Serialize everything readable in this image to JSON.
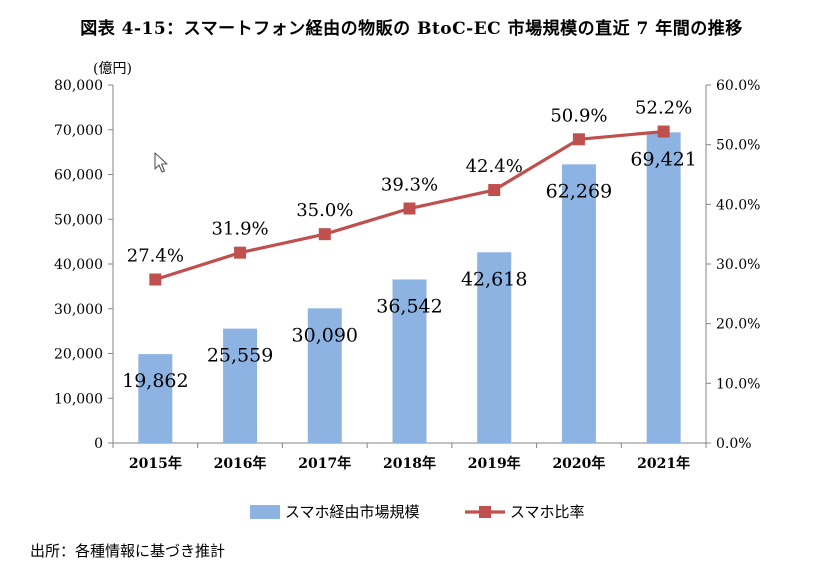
{
  "title": "図表 4-15：スマートフォン経由の物販の BtoC-EC 市場規模の直近 7 年間の推移",
  "source": "出所：各種情報に基づき推計",
  "chart_data": {
    "type": "bar",
    "title": "図表 4-15：スマートフォン経由の物販の BtoC-EC 市場規模の直近 7 年間の推移",
    "categories": [
      "2015年",
      "2016年",
      "2017年",
      "2018年",
      "2019年",
      "2020年",
      "2021年"
    ],
    "y_unit_label": "(億円)",
    "ylim": [
      0,
      80000
    ],
    "y_ticks": [
      "0",
      "10,000",
      "20,000",
      "30,000",
      "40,000",
      "50,000",
      "60,000",
      "70,000",
      "80,000"
    ],
    "y2lim": [
      0,
      60
    ],
    "y2_ticks": [
      "0.0%",
      "10.0%",
      "20.0%",
      "30.0%",
      "40.0%",
      "50.0%",
      "60.0%"
    ],
    "series": [
      {
        "name": "スマホ経由市場規模",
        "type": "bar",
        "axis": "left",
        "color": "#8db3e2",
        "values": [
          19862,
          25559,
          30090,
          36542,
          42618,
          62269,
          69421
        ],
        "labels": [
          "19,862",
          "25,559",
          "30,090",
          "36,542",
          "42,618",
          "62,269",
          "69,421"
        ]
      },
      {
        "name": "スマホ比率",
        "type": "line",
        "axis": "right",
        "color": "#c0504d",
        "values": [
          27.4,
          31.9,
          35.0,
          39.3,
          42.4,
          50.9,
          52.2
        ],
        "labels": [
          "27.4%",
          "31.9%",
          "35.0%",
          "39.3%",
          "42.4%",
          "50.9%",
          "52.2%"
        ]
      }
    ],
    "grid": false,
    "legend_position": "bottom"
  }
}
